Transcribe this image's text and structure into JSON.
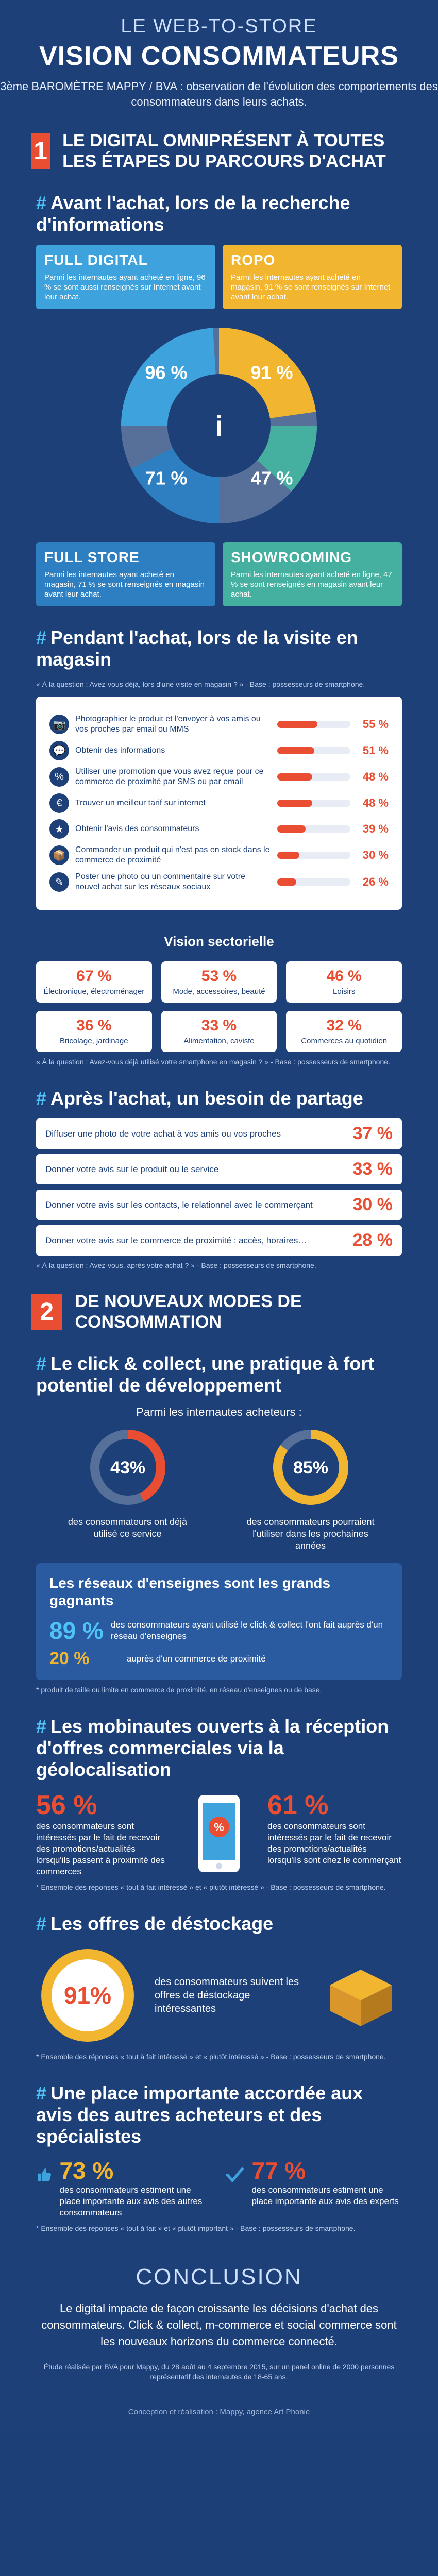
{
  "header": {
    "pretitle": "LE WEB-TO-STORE",
    "title": "VISION CONSOMMATEURS",
    "subtitle": "3ème BAROMÈTRE MAPPY / BVA : observation de l'évolution des comportements des consommateurs dans leurs achats."
  },
  "part1": {
    "number": "1",
    "title": "LE DIGITAL OMNIPRÉSENT À TOUTES LES ÉTAPES DU PARCOURS D'ACHAT"
  },
  "research": {
    "heading": "Avant l'achat, lors de la recherche d'informations",
    "quadrants": [
      {
        "title": "FULL DIGITAL",
        "desc": "Parmi les internautes ayant acheté en ligne, 96 % se sont aussi renseignés sur Internet avant leur achat.",
        "color": "#3ea3dc"
      },
      {
        "title": "ROPO",
        "desc": "Parmi les internautes ayant acheté en magasin, 91 % se sont renseignés sur Internet avant leur achat.",
        "color": "#f2b530"
      },
      {
        "title": "FULL STORE",
        "desc": "Parmi les internautes ayant acheté en magasin, 71 % se sont renseignés en magasin avant leur achat.",
        "color": "#2e7fc1"
      },
      {
        "title": "SHOWROOMING",
        "desc": "Parmi les internautes ayant acheté en ligne, 47 % se sont renseignés en magasin avant leur achat.",
        "color": "#45b0a0"
      }
    ]
  },
  "in_store": {
    "heading": "Pendant l'achat, lors de la visite en magasin",
    "note": "« À la question : Avez-vous déjà, lors d'une visite en magasin ? » - Base : possesseurs de smartphone."
  },
  "sector": {
    "heading": "Vision sectorielle",
    "note": "« À la question : Avez-vous déjà utilisé votre smartphone en magasin ? » - Base : possesseurs de smartphone."
  },
  "sharing": {
    "heading": "Après l'achat, un besoin de partage",
    "note": "« À la question : Avez-vous, après votre achat ? » - Base : possesseurs de smartphone."
  },
  "part2": {
    "number": "2",
    "title": "DE NOUVEAUX MODES DE CONSOMMATION"
  },
  "click": {
    "heading": "Le click & collect, une pratique à fort potentiel de développement",
    "sub": "Parmi les internautes acheteurs :",
    "reseaux_title": "Les réseaux d'enseignes sont les grands gagnants",
    "reseaux_1_pct": "89 %",
    "reseaux_1_label": "des consommateurs ayant utilisé le click & collect l'ont fait auprès d'un réseau d'enseignes",
    "reseaux_2_pct": "20 %",
    "reseaux_2_label": "auprès d'un commerce de proximité",
    "note": "* produit de taille ou limite en commerce de proximité, en réseau d'enseignes ou de base."
  },
  "mobile": {
    "heading": "Les mobinautes ouverts à la réception d'offres commerciales via la géolocalisation",
    "left_pct": "56 %",
    "left_label": "des consommateurs sont intéressés par le fait de recevoir des promotions/actualités lorsqu'ils passent à proximité des commerces",
    "right_pct": "61 %",
    "right_label": "des consommateurs sont intéressés par le fait de recevoir des promotions/actualités lorsqu'ils sont chez le commerçant",
    "note": "* Ensemble des réponses « tout à fait intéressé » et « plutôt intéressé » - Base : possesseurs de smartphone."
  },
  "destock": {
    "heading": "Les offres de déstockage",
    "pct": "91%",
    "label": "des consommateurs suivent les offres de déstockage intéressantes",
    "note": "* Ensemble des réponses « tout à fait intéressé » et « plutôt intéressé » - Base : possesseurs de smartphone."
  },
  "reviews": {
    "heading": "Une place importante accordée aux avis des autres acheteurs et des spécialistes",
    "left_pct": "73 %",
    "left_label": "des consommateurs estiment une place importante aux avis des autres consommateurs",
    "right_pct": "77 %",
    "right_label": "des consommateurs estiment une place importante aux avis des experts",
    "note": "* Ensemble des réponses « tout à fait » et « plutôt important » - Base : possesseurs de smartphone."
  },
  "conclusion": {
    "title": "CONCLUSION",
    "text": "Le digital impacte de façon croissante les décisions d'achat des consommateurs. Click & collect, m-commerce et social commerce sont les nouveaux horizons du commerce connecté.",
    "method": "Étude réalisée par BVA pour Mappy, du 28 août au 4 septembre 2015, sur un panel online de 2000 personnes représentatif des internautes de 18-65 ans."
  },
  "footer": "Conception et réalisation : Mappy, agence Art Phonie",
  "chart_data": [
    {
      "type": "pie",
      "title": "",
      "categories": [
        "FULL DIGITAL",
        "ROPO",
        "FULL STORE",
        "SHOWROOMING"
      ],
      "values": [
        96,
        91,
        71,
        47
      ],
      "unit": "%"
    },
    {
      "type": "bar",
      "title": "",
      "categories": [
        "Photographier le produit et l'envoyer à vos amis ou vos proches par email ou MMS",
        "Obtenir des informations",
        "Utiliser une promotion que vous avez reçue pour ce commerce de proximité par SMS ou par email",
        "Trouver un meilleur tarif sur internet",
        "Obtenir l'avis des consommateurs",
        "Commander un produit qui n'est pas en stock dans le commerce de proximité",
        "Poster une photo ou un commentaire sur votre nouvel achat sur les réseaux sociaux"
      ],
      "values": [
        55,
        51,
        48,
        48,
        39,
        30,
        26
      ],
      "unit": "%",
      "ylim": [
        0,
        100
      ]
    },
    {
      "type": "bar",
      "title": "Vision sectorielle",
      "categories": [
        "Électronique, électroménager",
        "Mode, accessoires, beauté",
        "Loisirs",
        "Bricolage, jardinage",
        "Alimentation, caviste",
        "Commerces au quotidien"
      ],
      "values": [
        67,
        53,
        46,
        36,
        33,
        32
      ],
      "unit": "%"
    },
    {
      "type": "bar",
      "title": "",
      "categories": [
        "Diffuser une photo de votre achat à vos amis ou vos proches",
        "Donner votre avis sur le produit ou le service",
        "Donner votre avis sur les contacts, le relationnel avec le commerçant",
        "Donner votre avis sur le commerce de proximité : accès, horaires…"
      ],
      "values": [
        37,
        33,
        30,
        28
      ],
      "unit": "%"
    },
    {
      "type": "pie",
      "title": "Parmi les internautes acheteurs :",
      "categories": [
        "des consommateurs ont déjà utilisé ce service",
        "des consommateurs pourraient l'utiliser dans les prochaines années"
      ],
      "values": [
        43,
        85
      ],
      "unit": "%"
    }
  ]
}
